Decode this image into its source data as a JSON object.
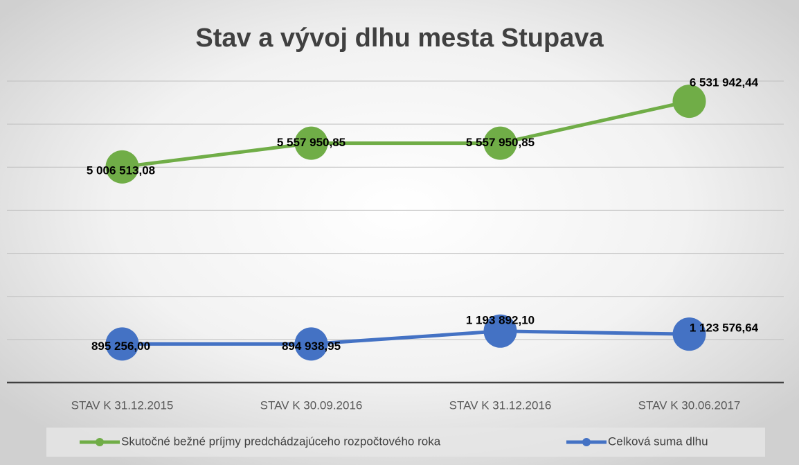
{
  "chart_data": {
    "type": "line",
    "title": "Stav a vývoj dlhu mesta Stupava",
    "categories": [
      "STAV K 31.12.2015",
      "STAV K 30.09.2016",
      "STAV K 31.12.2016",
      "STAV K 30.06.2017"
    ],
    "series": [
      {
        "name": "Skutočné bežné príjmy predchádzajúceho rozpočtového roka",
        "color": "#70ad47",
        "values": [
          5006513.08,
          5557950.85,
          5557950.85,
          6531942.44
        ],
        "value_labels": [
          "5 006 513,08",
          "5 557 950,85",
          "5 557 950,85",
          "6 531 942,44"
        ]
      },
      {
        "name": "Celková suma dlhu",
        "color": "#4472c4",
        "values": [
          895256.0,
          894938.95,
          1193892.1,
          1123576.64
        ],
        "value_labels": [
          "895 256,00",
          "894 938,95",
          "1 193 892,10",
          "1 123 576,64"
        ]
      }
    ],
    "ylim": [
      0,
      7000000
    ],
    "yticks": [
      0,
      1000000,
      2000000,
      3000000,
      4000000,
      5000000,
      6000000,
      7000000
    ],
    "grid": true,
    "legend": "bottom"
  }
}
